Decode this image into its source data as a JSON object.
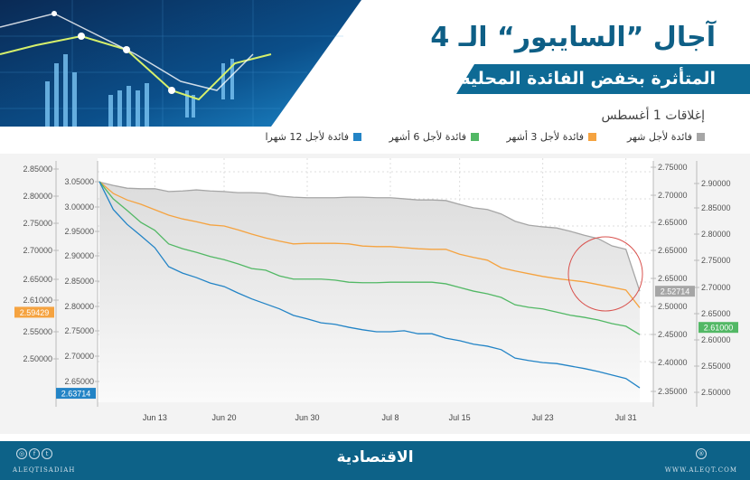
{
  "header": {
    "title": "آجال ”السايبور“ الـ 4",
    "subtitle": "المتأثرة بخفض الفائدة المحلية",
    "note": "إغلاقات 1 أغسطس"
  },
  "footer": {
    "brand": "الاقتصادية",
    "handle": "ALEQTISADIAH",
    "website": "WWW.ALEQT.COM",
    "icons": [
      "instagram-icon",
      "facebook-icon",
      "twitter-icon",
      "website-icon"
    ]
  },
  "colors": {
    "grey": "#a6a6a6",
    "orange": "#f5a340",
    "green": "#52b865",
    "blue": "#2384c6",
    "brand": "#0d6288",
    "highlight_circle": "#d9534f"
  },
  "chart_data": {
    "type": "line",
    "title": "",
    "legend_position": "top",
    "grid": true,
    "x": [
      "Jun 9",
      "Jun 10",
      "Jun 11",
      "Jun 12",
      "Jun 13",
      "Jun 16",
      "Jun 17",
      "Jun 18",
      "Jun 19",
      "Jun 20",
      "Jun 23",
      "Jun 24",
      "Jun 25",
      "Jun 26",
      "Jun 27",
      "Jun 30",
      "Jul 1",
      "Jul 2",
      "Jul 3",
      "Jul 4",
      "Jul 7",
      "Jul 8",
      "Jul 9",
      "Jul 10",
      "Jul 11",
      "Jul 14",
      "Jul 15",
      "Jul 16",
      "Jul 17",
      "Jul 18",
      "Jul 21",
      "Jul 22",
      "Jul 23",
      "Jul 24",
      "Jul 25",
      "Jul 28",
      "Jul 29",
      "Jul 30",
      "Jul 31",
      "Aug 1"
    ],
    "x_tick_labels": [
      "Jun 13",
      "Jun 20",
      "Jun 30",
      "Jul 8",
      "Jul 15",
      "Jul 23",
      "Jul 31"
    ],
    "series": [
      {
        "name": "فائدة لأجل شهر",
        "color": "#a6a6a6",
        "axis": "right-inner",
        "last_label": "2.52714",
        "values": [
          2.722,
          2.716,
          2.711,
          2.71,
          2.71,
          2.705,
          2.706,
          2.708,
          2.706,
          2.705,
          2.703,
          2.703,
          2.702,
          2.697,
          2.695,
          2.694,
          2.694,
          2.694,
          2.695,
          2.695,
          2.694,
          2.694,
          2.692,
          2.69,
          2.69,
          2.689,
          2.682,
          2.676,
          2.673,
          2.665,
          2.652,
          2.645,
          2.642,
          2.64,
          2.634,
          2.627,
          2.621,
          2.608,
          2.602,
          2.52714
        ]
      },
      {
        "name": "فائدة لأجل 3 أشهر",
        "color": "#f5a340",
        "axis": "left-outer",
        "last_label": "2.59429",
        "values": [
          2.827,
          2.805,
          2.793,
          2.785,
          2.775,
          2.765,
          2.758,
          2.753,
          2.747,
          2.745,
          2.738,
          2.73,
          2.723,
          2.717,
          2.712,
          2.713,
          2.713,
          2.713,
          2.712,
          2.708,
          2.707,
          2.707,
          2.705,
          2.703,
          2.702,
          2.702,
          2.693,
          2.687,
          2.682,
          2.668,
          2.662,
          2.657,
          2.652,
          2.648,
          2.645,
          2.642,
          2.637,
          2.632,
          2.627,
          2.59429
        ]
      },
      {
        "name": "فائدة لأجل 6 أشهر",
        "color": "#52b865",
        "axis": "right-outer",
        "last_label": "2.61000",
        "values": [
          2.902,
          2.869,
          2.847,
          2.824,
          2.809,
          2.783,
          2.774,
          2.767,
          2.759,
          2.753,
          2.745,
          2.736,
          2.733,
          2.722,
          2.716,
          2.716,
          2.716,
          2.714,
          2.71,
          2.709,
          2.709,
          2.71,
          2.71,
          2.71,
          2.71,
          2.707,
          2.7,
          2.693,
          2.688,
          2.681,
          2.667,
          2.662,
          2.659,
          2.653,
          2.647,
          2.643,
          2.638,
          2.631,
          2.626,
          2.61
        ]
      },
      {
        "name": "فائدة لأجل 12 شهرا",
        "color": "#2384c6",
        "axis": "left-inner",
        "last_label": "2.63714",
        "values": [
          3.052,
          2.996,
          2.966,
          2.943,
          2.919,
          2.881,
          2.868,
          2.859,
          2.848,
          2.841,
          2.828,
          2.816,
          2.806,
          2.796,
          2.783,
          2.776,
          2.768,
          2.765,
          2.759,
          2.754,
          2.75,
          2.75,
          2.752,
          2.746,
          2.746,
          2.737,
          2.732,
          2.725,
          2.721,
          2.714,
          2.697,
          2.692,
          2.688,
          2.686,
          2.681,
          2.676,
          2.67,
          2.663,
          2.656,
          2.63714
        ]
      }
    ],
    "axes": {
      "left-outer": [
        "2.85000",
        "2.80000",
        "2.75000",
        "2.70000",
        "2.65000",
        "2.61000",
        "2.55000",
        "2.50000"
      ],
      "left-inner": [
        "3.05000",
        "3.00000",
        "2.95000",
        "2.90000",
        "2.85000",
        "2.80000",
        "2.75000",
        "2.70000",
        "2.65000"
      ],
      "right-inner": [
        "2.75000",
        "2.70000",
        "2.65000",
        "2.65000",
        "2.65000",
        "2.50000",
        "2.45000",
        "2.40000",
        "2.35000"
      ],
      "right-outer": [
        "2.90000",
        "2.85000",
        "2.80000",
        "2.75000",
        "2.70000",
        "2.65000",
        "2.60000",
        "2.55000",
        "2.50000"
      ]
    }
  }
}
